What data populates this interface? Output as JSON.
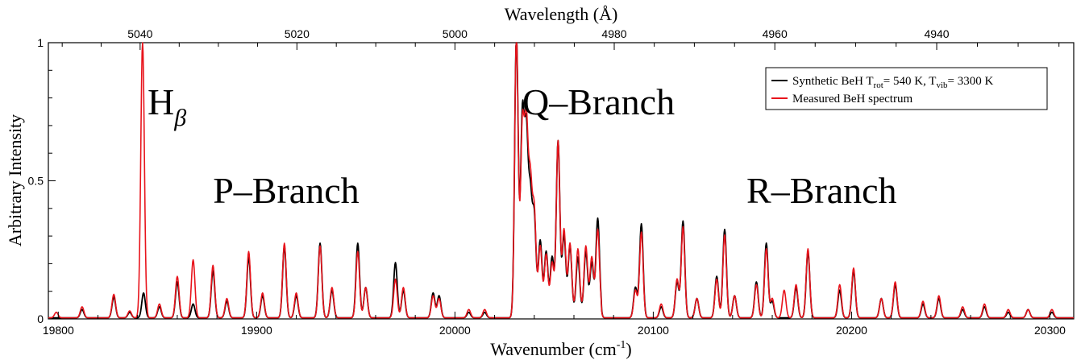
{
  "chart_data": {
    "type": "line",
    "title": "",
    "xlabel": "Wavenumber (cm",
    "xlabel_sup": "-1",
    "xlabel_end": ")",
    "x2label": "Wavelength (Å)",
    "ylabel": "Arbitrary Intensity",
    "xlim": [
      19795,
      20312
    ],
    "ylim": [
      0,
      1
    ],
    "x_ticks": [
      19800,
      19900,
      20000,
      20100,
      20200,
      20300
    ],
    "x_tick_labels": [
      "19800",
      "19900",
      "20000",
      "20100",
      "20200",
      "20300"
    ],
    "y_ticks": [
      0,
      0.5,
      1
    ],
    "y_tick_labels": [
      "0",
      "0.5",
      "1"
    ],
    "x2_ticks": [
      5040,
      5020,
      5000,
      4980,
      4960,
      4940
    ],
    "x2_tick_labels": [
      "5040",
      "5020",
      "5000",
      "4980",
      "4960",
      "4940"
    ],
    "grid": false,
    "legend_position": "top-right",
    "annotations": [
      {
        "text": "H",
        "sub": "β",
        "x": 19845,
        "y": 0.74
      },
      {
        "text": "P–Branch",
        "x": 19878,
        "y": 0.42
      },
      {
        "text": "Q–Branch",
        "x": 20034,
        "y": 0.74
      },
      {
        "text": "R–Branch",
        "x": 20147,
        "y": 0.42
      }
    ],
    "series": [
      {
        "name": "Synthetic BeH T",
        "legend_parts": {
          "T1_sub": "rot",
          "mid": "= 540 K, T",
          "T2_sub": "vib",
          "end": "= 3300 K"
        },
        "color": "#000000",
        "peaks": [
          [
            19812,
            0.03
          ],
          [
            19828,
            0.075
          ],
          [
            19836,
            0.02
          ],
          [
            19843,
            0.09
          ],
          [
            19851,
            0.04
          ],
          [
            19860,
            0.13
          ],
          [
            19868,
            0.05
          ],
          [
            19878,
            0.17
          ],
          [
            19885,
            0.06
          ],
          [
            19896,
            0.22
          ],
          [
            19903,
            0.08
          ],
          [
            19914,
            0.26
          ],
          [
            19920,
            0.08
          ],
          [
            19932,
            0.27
          ],
          [
            19938,
            0.1
          ],
          [
            19951,
            0.27
          ],
          [
            19955,
            0.11
          ],
          [
            19970,
            0.2
          ],
          [
            19974,
            0.1
          ],
          [
            19989,
            0.09
          ],
          [
            19992,
            0.08
          ],
          [
            20007,
            0.02
          ],
          [
            20015,
            0.02
          ],
          [
            20031,
            1.0
          ],
          [
            20034,
            0.7
          ],
          [
            20036,
            0.62
          ],
          [
            20038,
            0.4
          ],
          [
            20040,
            0.34
          ],
          [
            20043,
            0.26
          ],
          [
            20046,
            0.22
          ],
          [
            20049,
            0.2
          ],
          [
            20052,
            0.62
          ],
          [
            20055,
            0.28
          ],
          [
            20058,
            0.24
          ],
          [
            20062,
            0.2
          ],
          [
            20066,
            0.22
          ],
          [
            20069,
            0.18
          ],
          [
            20072,
            0.34
          ],
          [
            20091,
            0.11
          ],
          [
            20094,
            0.34
          ],
          [
            20104,
            0.04
          ],
          [
            20112,
            0.13
          ],
          [
            20115,
            0.35
          ],
          [
            20122,
            0.07
          ],
          [
            20132,
            0.15
          ],
          [
            20136,
            0.32
          ],
          [
            20141,
            0.08
          ],
          [
            20152,
            0.13
          ],
          [
            20157,
            0.27
          ],
          [
            20160,
            0.06
          ],
          [
            20172,
            0.11
          ],
          [
            20178,
            0.24
          ],
          [
            20194,
            0.1
          ],
          [
            20201,
            0.17
          ],
          [
            20215,
            0.07
          ],
          [
            20222,
            0.12
          ],
          [
            20236,
            0.05
          ],
          [
            20244,
            0.07
          ],
          [
            20256,
            0.03
          ],
          [
            20267,
            0.04
          ],
          [
            20279,
            0.02
          ],
          [
            20289,
            0.03
          ],
          [
            20301,
            0.02
          ]
        ]
      },
      {
        "name": "Measured BeH spectrum",
        "color": "#e8141c",
        "peaks": [
          [
            19799,
            0.02
          ],
          [
            19812,
            0.04
          ],
          [
            19828,
            0.085
          ],
          [
            19836,
            0.025
          ],
          [
            19842.5,
            1.0
          ],
          [
            19851,
            0.05
          ],
          [
            19860,
            0.15
          ],
          [
            19868,
            0.21
          ],
          [
            19878,
            0.19
          ],
          [
            19885,
            0.07
          ],
          [
            19896,
            0.24
          ],
          [
            19903,
            0.09
          ],
          [
            19914,
            0.27
          ],
          [
            19920,
            0.09
          ],
          [
            19932,
            0.26
          ],
          [
            19938,
            0.11
          ],
          [
            19951,
            0.24
          ],
          [
            19955,
            0.11
          ],
          [
            19970,
            0.14
          ],
          [
            19974,
            0.11
          ],
          [
            19989,
            0.08
          ],
          [
            19992,
            0.07
          ],
          [
            20007,
            0.03
          ],
          [
            20015,
            0.03
          ],
          [
            20031,
            1.0
          ],
          [
            20034,
            0.66
          ],
          [
            20036,
            0.65
          ],
          [
            20038,
            0.45
          ],
          [
            20040,
            0.36
          ],
          [
            20043,
            0.24
          ],
          [
            20046,
            0.21
          ],
          [
            20049,
            0.18
          ],
          [
            20052,
            0.62
          ],
          [
            20055,
            0.3
          ],
          [
            20058,
            0.25
          ],
          [
            20062,
            0.23
          ],
          [
            20066,
            0.24
          ],
          [
            20069,
            0.2
          ],
          [
            20072,
            0.3
          ],
          [
            20091,
            0.1
          ],
          [
            20094,
            0.31
          ],
          [
            20104,
            0.05
          ],
          [
            20112,
            0.14
          ],
          [
            20115,
            0.33
          ],
          [
            20122,
            0.07
          ],
          [
            20132,
            0.14
          ],
          [
            20136,
            0.3
          ],
          [
            20141,
            0.08
          ],
          [
            20152,
            0.12
          ],
          [
            20157,
            0.25
          ],
          [
            20160,
            0.07
          ],
          [
            20166,
            0.1
          ],
          [
            20172,
            0.12
          ],
          [
            20178,
            0.25
          ],
          [
            20194,
            0.12
          ],
          [
            20201,
            0.18
          ],
          [
            20215,
            0.07
          ],
          [
            20222,
            0.13
          ],
          [
            20236,
            0.06
          ],
          [
            20244,
            0.08
          ],
          [
            20256,
            0.04
          ],
          [
            20267,
            0.05
          ],
          [
            20279,
            0.03
          ],
          [
            20289,
            0.03
          ],
          [
            20301,
            0.03
          ]
        ]
      }
    ]
  }
}
